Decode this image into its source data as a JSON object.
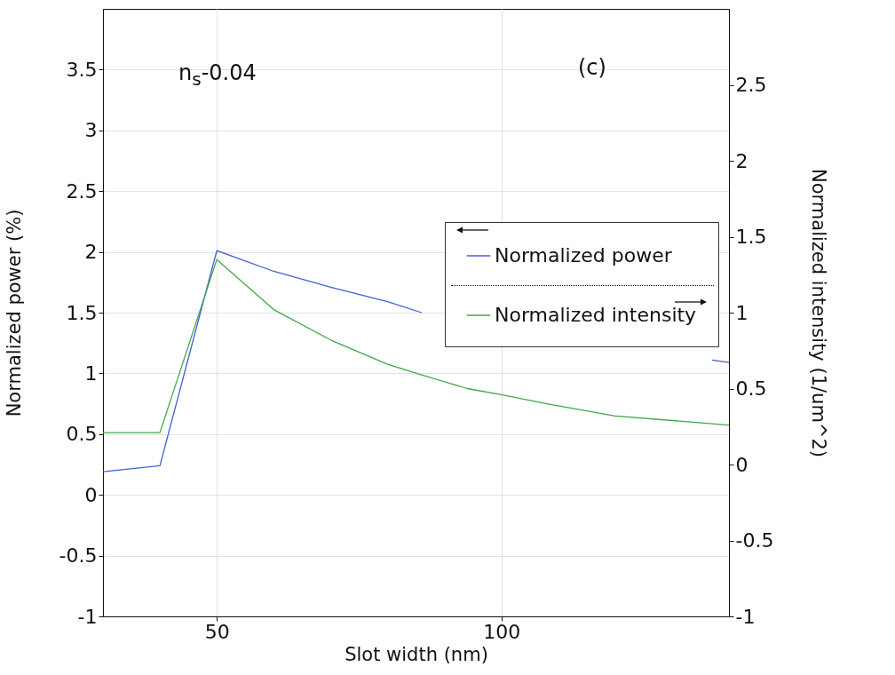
{
  "chart_data": {
    "type": "line",
    "xlabel": "Slot width (nm)",
    "ylabel": "Normalized power (%)",
    "y2label": "Normalized intensity (1/um^2)",
    "annotations": [
      "n$_{s}$-0.04",
      "(c)"
    ],
    "xlim": [
      30,
      140
    ],
    "xticks": [
      50,
      100
    ],
    "ylim": [
      -1,
      4
    ],
    "yticks": [
      -1,
      -0.5,
      0,
      0.5,
      1,
      1.5,
      2,
      2.5,
      3,
      3.5
    ],
    "y2lim": [
      -1,
      3
    ],
    "y2ticks": [
      -1,
      -0.5,
      0,
      0.5,
      1,
      1.5,
      2,
      2.5
    ],
    "grid": true,
    "legend": "right",
    "series": [
      {
        "name": "Normalized power",
        "color": "#4060d8",
        "x": [
          30,
          40,
          50,
          60,
          70,
          80,
          86,
          100,
          120,
          137,
          140
        ],
        "values": [
          0.19,
          0.24,
          2.01,
          1.84,
          1.71,
          1.59,
          1.5,
          null,
          null,
          1.11,
          1.09
        ]
      },
      {
        "name": "Normalized intensity",
        "color": "#40a848",
        "axis": "y2",
        "x": [
          30,
          40,
          50,
          60,
          70,
          80,
          86,
          94,
          100,
          108,
          120,
          140
        ],
        "values": [
          0.21,
          0.21,
          1.35,
          1.02,
          0.82,
          0.66,
          0.59,
          0.5,
          0.46,
          0.4,
          0.32,
          0.26
        ]
      }
    ]
  }
}
